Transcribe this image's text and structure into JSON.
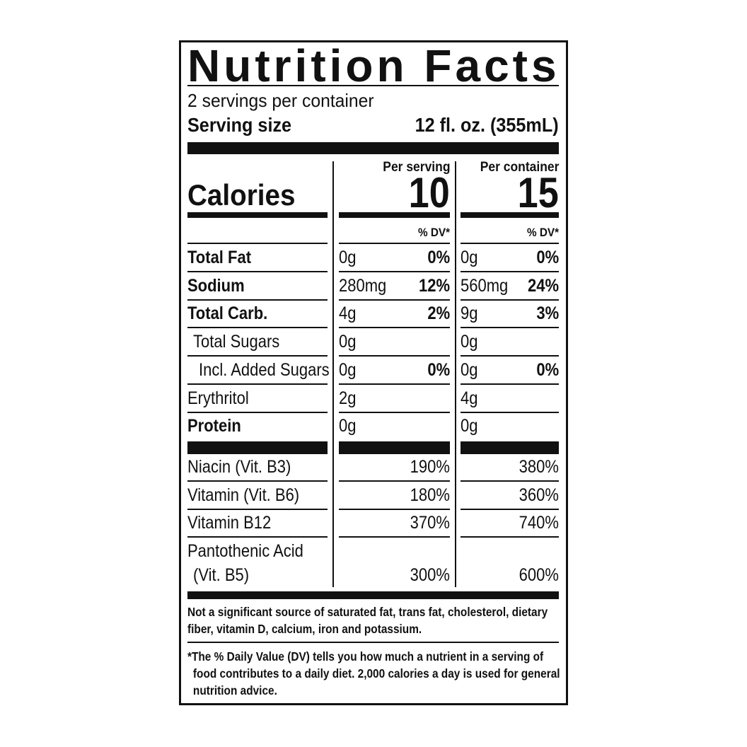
{
  "title": "Nutrition Facts",
  "servings": "2 servings per container",
  "serving_size": {
    "label": "Serving size",
    "value": "12 fl. oz. (355mL)"
  },
  "calories": {
    "label": "Calories",
    "columns": [
      {
        "header": "Per serving",
        "value": "10",
        "dv_label": "% DV*"
      },
      {
        "header": "Per container",
        "value": "15",
        "dv_label": "% DV*"
      }
    ]
  },
  "nutrients": [
    {
      "name": "Total Fat",
      "bold": true,
      "indent": 0,
      "values": [
        {
          "amount": "0g",
          "dv": "0%"
        },
        {
          "amount": "0g",
          "dv": "0%"
        }
      ]
    },
    {
      "name": "Sodium",
      "bold": true,
      "indent": 0,
      "values": [
        {
          "amount": "280mg",
          "dv": "12%"
        },
        {
          "amount": "560mg",
          "dv": "24%"
        }
      ]
    },
    {
      "name": "Total Carb.",
      "bold": true,
      "indent": 0,
      "values": [
        {
          "amount": "4g",
          "dv": "2%"
        },
        {
          "amount": "9g",
          "dv": "3%"
        }
      ]
    },
    {
      "name": "Total Sugars",
      "bold": false,
      "indent": 1,
      "values": [
        {
          "amount": "0g"
        },
        {
          "amount": "0g"
        }
      ]
    },
    {
      "name": "Incl. Added Sugars",
      "bold": false,
      "indent": 2,
      "values": [
        {
          "amount": "0g",
          "dv": "0%"
        },
        {
          "amount": "0g",
          "dv": "0%"
        }
      ]
    },
    {
      "name": "Erythritol",
      "bold": false,
      "indent": 0,
      "values": [
        {
          "amount": "2g"
        },
        {
          "amount": "4g"
        }
      ]
    },
    {
      "name": "Protein",
      "bold": true,
      "indent": 0,
      "values": [
        {
          "amount": "0g"
        },
        {
          "amount": "0g"
        }
      ]
    }
  ],
  "vitamins": [
    {
      "name": [
        "Niacin (Vit. B3)"
      ],
      "values": [
        "190%",
        "380%"
      ]
    },
    {
      "name": [
        "Vitamin (Vit. B6)"
      ],
      "values": [
        "180%",
        "360%"
      ]
    },
    {
      "name": [
        "Vitamin B12"
      ],
      "values": [
        "370%",
        "740%"
      ]
    },
    {
      "name": [
        "Pantothenic Acid",
        "(Vit. B5)"
      ],
      "values": [
        "300%",
        "600%"
      ]
    }
  ],
  "footnotes": [
    "Not a significant source of saturated fat, trans fat, cholesterol, dietary fiber, vitamin D, calcium, iron and potassium.",
    "*The % Daily Value (DV) tells you how much a nutrient in a serving of food contributes to a daily diet. 2,000 calories a day is used for general nutrition advice."
  ]
}
